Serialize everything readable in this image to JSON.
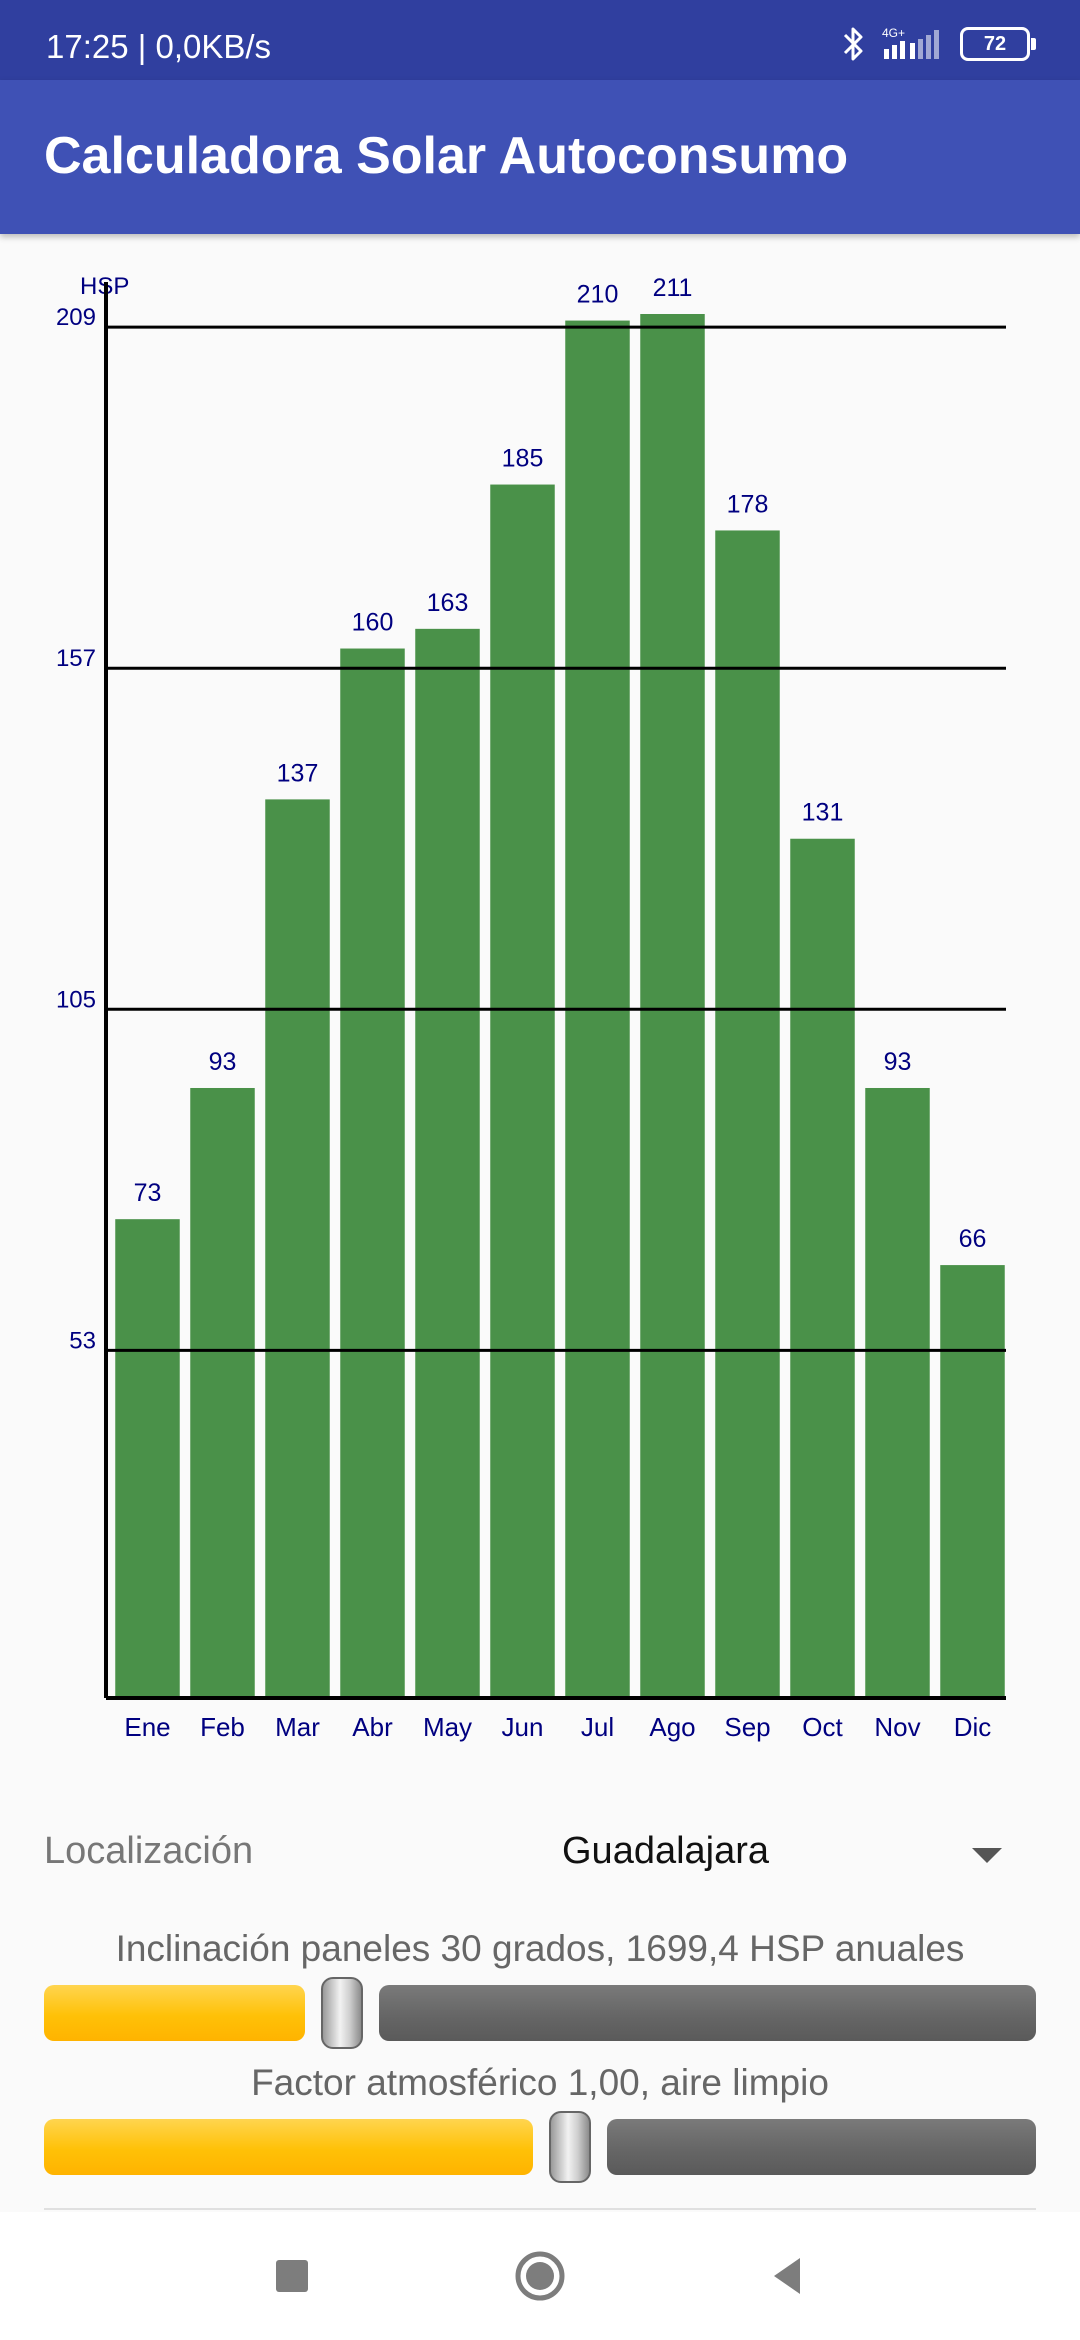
{
  "status_bar": {
    "text": "17:25 | 0,0KB/s",
    "network": "4G+",
    "battery": "72",
    "icons": [
      "bluetooth-icon",
      "signal-icon",
      "battery-icon"
    ]
  },
  "app_bar": {
    "title": "Calculadora Solar Autoconsumo"
  },
  "chart_data": {
    "type": "bar",
    "ylabel": "HSP",
    "categories": [
      "Ene",
      "Feb",
      "Mar",
      "Abr",
      "May",
      "Jun",
      "Jul",
      "Ago",
      "Sep",
      "Oct",
      "Nov",
      "Dic"
    ],
    "values": [
      73,
      93,
      137,
      160,
      163,
      185,
      210,
      211,
      178,
      131,
      93,
      66
    ],
    "yticks": [
      53,
      105,
      157,
      209
    ],
    "ylim": [
      0,
      211
    ],
    "grid": true,
    "bar_color": "#4a9149",
    "label_color": "#000080"
  },
  "location": {
    "label": "Localización",
    "value": "Guadalajara"
  },
  "sliders": [
    {
      "label": "Inclinación paneles 30 grados, 1699,4 HSP anuales",
      "value_fraction": 0.3
    },
    {
      "label": "Factor atmosférico 1,00, aire limpio",
      "value_fraction": 0.53
    }
  ],
  "nav_bar": {
    "buttons": [
      "recents-button",
      "home-button",
      "back-button"
    ]
  },
  "colors": {
    "status_bar": "#303f9f",
    "app_bar": "#3f51b5",
    "slider_fill": "#ffc107",
    "slider_track": "#666666"
  }
}
